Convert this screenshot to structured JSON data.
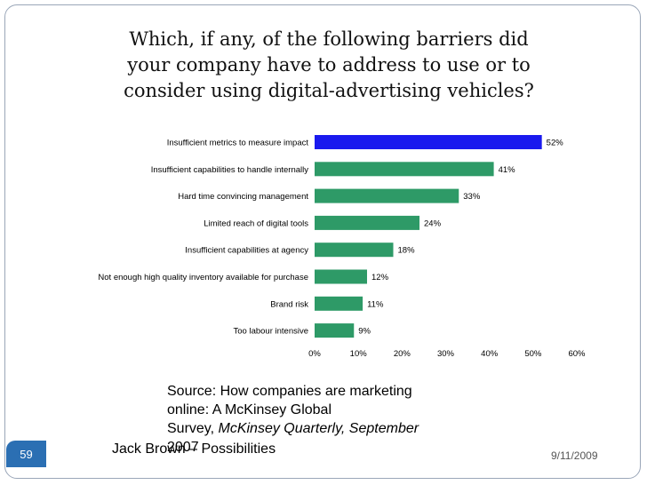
{
  "title": "Which, if any, of the following barriers did your company have to address to use or to consider using digital-advertising vehicles?",
  "chart_data": {
    "type": "bar",
    "orientation": "horizontal",
    "categories": [
      "Insufficient metrics to measure impact",
      "Insufficient capabilities to handle internally",
      "Hard time convincing management",
      "Limited reach of digital tools",
      "Insufficient capabilities at agency",
      "Not enough high quality inventory available for purchase",
      "Brand risk",
      "Too labour intensive"
    ],
    "values": [
      52,
      41,
      33,
      24,
      18,
      12,
      11,
      9
    ],
    "value_labels": [
      "52%",
      "41%",
      "33%",
      "24%",
      "18%",
      "12%",
      "11%",
      "9%"
    ],
    "xlim": [
      0,
      60
    ],
    "xticks": [
      "0%",
      "10%",
      "20%",
      "30%",
      "40%",
      "50%",
      "60%"
    ],
    "colors": {
      "highlight": "#1a1aee",
      "default": "#2e9a67"
    },
    "grid": false,
    "legend": "none"
  },
  "source": {
    "line1": "Source: How companies are marketing",
    "line2": "online: A McKinsey Global",
    "line3_prefix": "Survey, ",
    "line3_journal": "McKinsey Quarterly, September",
    "line4": "2007"
  },
  "footer": {
    "author": "Jack Brown – Possibilities",
    "date": "9/11/2009",
    "slide_number": "59"
  }
}
